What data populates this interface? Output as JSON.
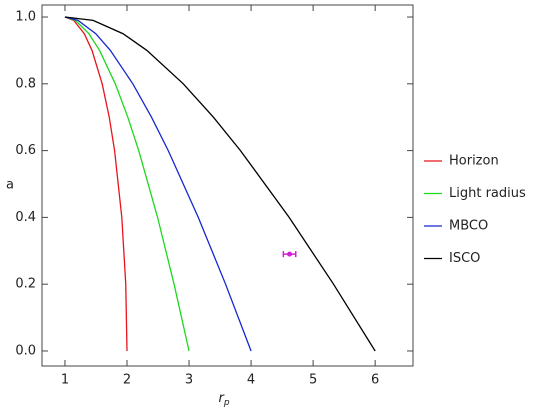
{
  "chart_data": {
    "type": "line",
    "x_label": "r",
    "x_label_subscript": "p",
    "y_label": "a",
    "xlim": [
      0.63,
      6.61
    ],
    "ylim": [
      -0.045,
      1.036
    ],
    "xticks": [
      1,
      2,
      3,
      4,
      5,
      6
    ],
    "yticks": [
      {
        "value": 0,
        "label": "0.0"
      },
      0.2,
      0.4,
      0.6,
      0.8,
      {
        "value": 1,
        "label": "1.0"
      }
    ],
    "legend": "right",
    "series": [
      {
        "name": "Horizon",
        "color": "#e8141c",
        "x": [
          2,
          1.98,
          1.9165,
          1.8,
          1.714,
          1.6,
          1.436,
          1.312,
          1.141,
          1
        ],
        "values": [
          0,
          0.2,
          0.4,
          0.6,
          0.7,
          0.8,
          0.9,
          0.95,
          0.99,
          1
        ]
      },
      {
        "name": "Light radius",
        "color": "#1ed81e",
        "x": [
          3,
          2.759,
          2.493,
          2.189,
          2.013,
          1.811,
          1.558,
          1.386,
          1.168,
          1
        ],
        "values": [
          0,
          0.2,
          0.4,
          0.6,
          0.7,
          0.8,
          0.9,
          0.95,
          0.99,
          1
        ]
      },
      {
        "name": "MBCO",
        "color": "#1428d0",
        "x": [
          4,
          3.589,
          3.149,
          2.665,
          2.395,
          2.094,
          1.732,
          1.497,
          1.21,
          1
        ],
        "values": [
          0,
          0.2,
          0.4,
          0.6,
          0.7,
          0.8,
          0.9,
          0.95,
          0.99,
          1
        ]
      },
      {
        "name": "ISCO",
        "color": "#000000",
        "x": [
          6,
          5.329,
          4.614,
          3.829,
          3.393,
          2.907,
          2.321,
          1.937,
          1.454,
          1
        ],
        "values": [
          0,
          0.2,
          0.4,
          0.6,
          0.7,
          0.8,
          0.9,
          0.95,
          0.99,
          1
        ]
      }
    ],
    "points": {
      "color": "#d21ed2",
      "x": [
        4.62
      ],
      "values": [
        0.29
      ],
      "xerr": [
        0.1
      ]
    }
  }
}
